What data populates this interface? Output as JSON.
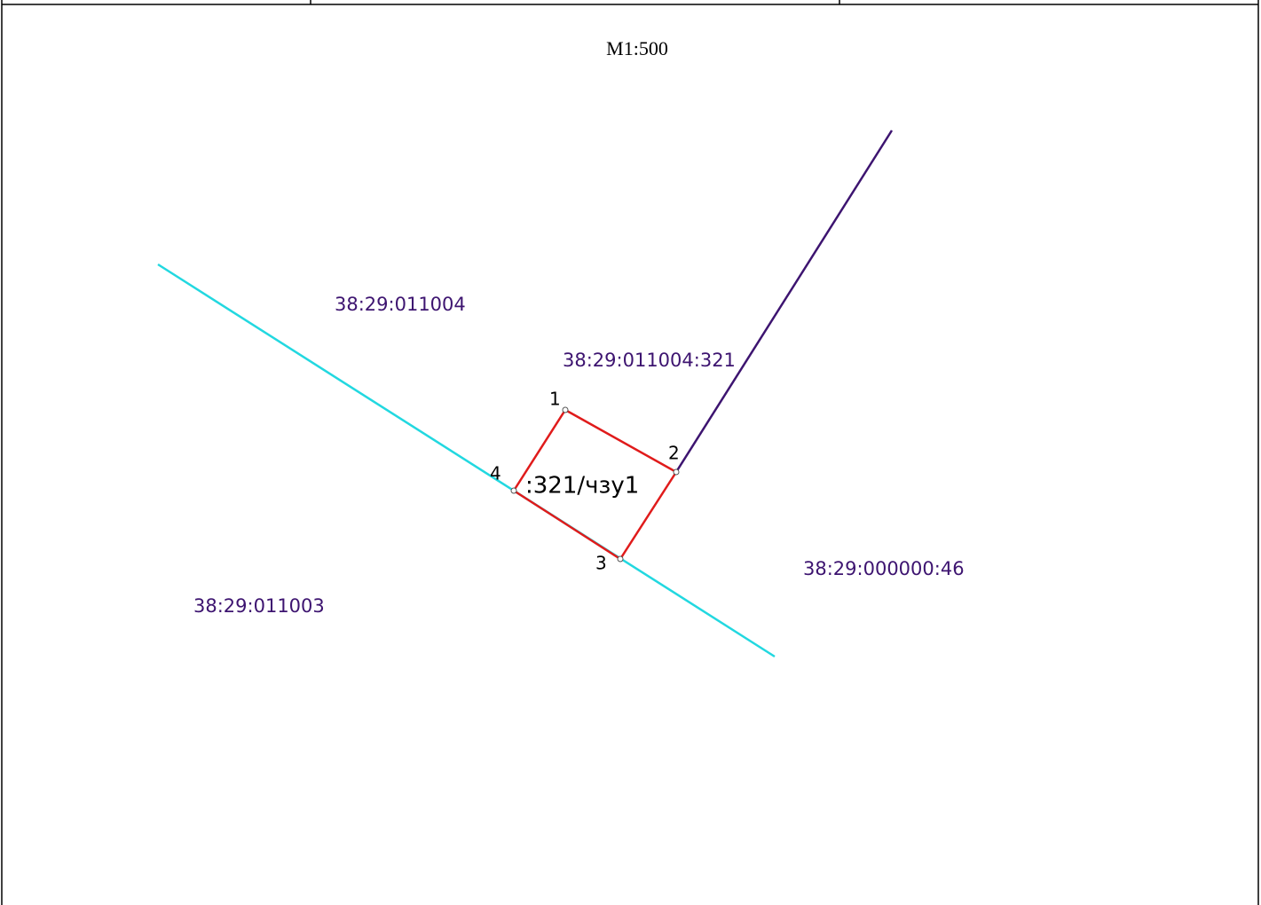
{
  "scale": "M1:500",
  "labels": [
    "38:29:011004",
    "38:29:011004:321",
    "38:29:000000:46",
    "38:29:011003"
  ],
  "parcel_label": ":321/чзу1",
  "points": [
    "1",
    "2",
    "3",
    "4"
  ]
}
